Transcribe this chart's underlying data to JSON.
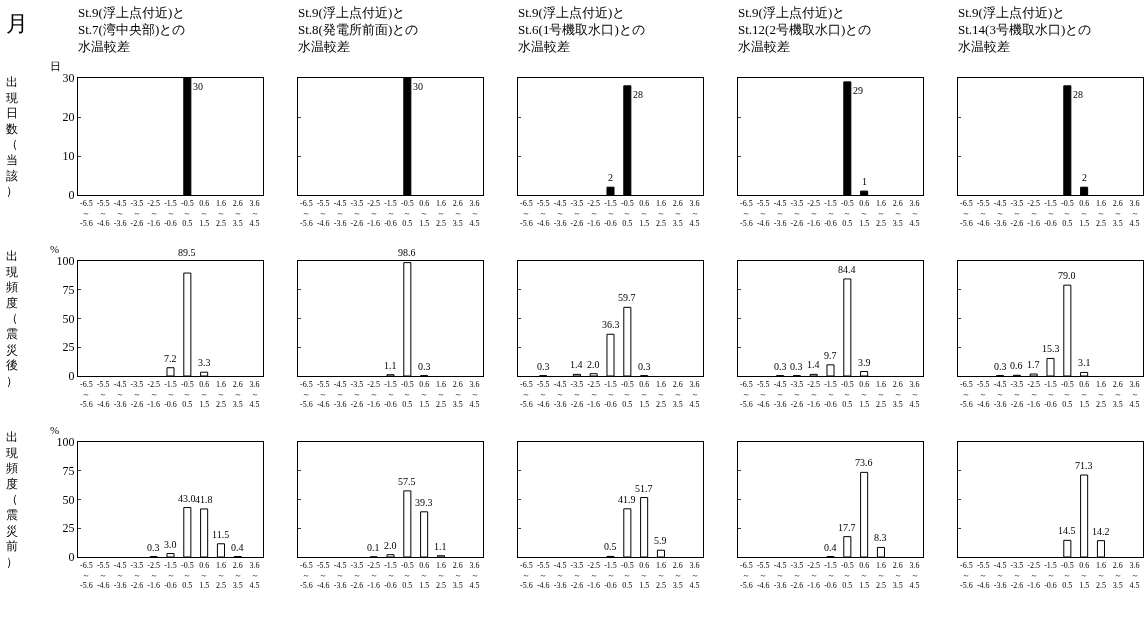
{
  "chart_data": [
    {
      "type": "bar",
      "title": "St.9(浮上点付近)とSt.7(湾中央部)との水温較差",
      "ylabel": "出現日数（当該）",
      "annotations": [
        "月",
        "日"
      ],
      "categories": [
        "-6.5～-5.6",
        "-5.5～-4.6",
        "-4.5～-3.6",
        "-3.5～-2.6",
        "-2.5～-1.6",
        "-1.5～-0.6",
        "-0.5～0.5",
        "0.6～1.5",
        "1.6～2.5",
        "2.6～3.5",
        "3.6～4.5"
      ],
      "values": [
        0,
        0,
        0,
        0,
        0,
        0,
        30,
        0,
        0,
        0,
        0
      ],
      "value_labels": [
        null,
        null,
        null,
        null,
        null,
        null,
        "30",
        null,
        null,
        null,
        null
      ],
      "color": "#000000",
      "ylim": [
        0,
        30
      ],
      "yticks": [
        0,
        10,
        20,
        30
      ]
    },
    {
      "type": "bar",
      "title": "St.9(浮上点付近)とSt.8(発電所前面)との水温較差",
      "categories": [
        "-6.5～-5.6",
        "-5.5～-4.6",
        "-4.5～-3.6",
        "-3.5～-2.6",
        "-2.5～-1.6",
        "-1.5～-0.6",
        "-0.5～0.5",
        "0.6～1.5",
        "1.6～2.5",
        "2.6～3.5",
        "3.6～4.5"
      ],
      "values": [
        0,
        0,
        0,
        0,
        0,
        0,
        30,
        0,
        0,
        0,
        0
      ],
      "value_labels": [
        null,
        null,
        null,
        null,
        null,
        null,
        "30",
        null,
        null,
        null,
        null
      ],
      "color": "#000000",
      "ylim": [
        0,
        30
      ],
      "yticks": [
        0,
        10,
        20,
        30
      ],
      "tick_labels": "x"
    },
    {
      "type": "bar",
      "title": "St.9(浮上点付近)とSt.6(1号機取水口)との水温較差",
      "categories": [
        "-6.5～-5.6",
        "-5.5～-4.6",
        "-4.5～-3.6",
        "-3.5～-2.6",
        "-2.5～-1.6",
        "-1.5～-0.6",
        "-0.5～0.5",
        "0.6～1.5",
        "1.6～2.5",
        "2.6～3.5",
        "3.6～4.5"
      ],
      "values": [
        0,
        0,
        0,
        0,
        0,
        2,
        28,
        0,
        0,
        0,
        0
      ],
      "value_labels": [
        null,
        null,
        null,
        null,
        null,
        "2",
        "28",
        null,
        null,
        null,
        null
      ],
      "color": "#000000",
      "ylim": [
        0,
        30
      ],
      "yticks": [
        0,
        10,
        20,
        30
      ],
      "tick_labels": "x"
    },
    {
      "type": "bar",
      "title": "St.9(浮上点付近)とSt.12(2号機取水口)との水温較差",
      "categories": [
        "-6.5～-5.6",
        "-5.5～-4.6",
        "-4.5～-3.6",
        "-3.5～-2.6",
        "-2.5～-1.6",
        "-1.5～-0.6",
        "-0.5～0.5",
        "0.6～1.5",
        "1.6～2.5",
        "2.6～3.5",
        "3.6～4.5"
      ],
      "values": [
        0,
        0,
        0,
        0,
        0,
        0,
        29,
        1,
        0,
        0,
        0
      ],
      "value_labels": [
        null,
        null,
        null,
        null,
        null,
        null,
        "29",
        "1",
        null,
        null,
        null
      ],
      "color": "#000000",
      "ylim": [
        0,
        30
      ],
      "yticks": [
        0,
        10,
        20,
        30
      ],
      "tick_labels": "x"
    },
    {
      "type": "bar",
      "title": "St.9(浮上点付近)とSt.14(3号機取水口)との水温較差",
      "categories": [
        "-6.5～-5.6",
        "-5.5～-4.6",
        "-4.5～-3.6",
        "-3.5～-2.6",
        "-2.5～-1.6",
        "-1.5～-0.6",
        "-0.5～0.5",
        "0.6～1.5",
        "1.6～2.5",
        "2.6～3.5",
        "3.6～4.5"
      ],
      "values": [
        0,
        0,
        0,
        0,
        0,
        0,
        28,
        2,
        0,
        0,
        0
      ],
      "value_labels": [
        null,
        null,
        null,
        null,
        null,
        null,
        "28",
        "2",
        null,
        null,
        null
      ],
      "color": "#000000",
      "ylim": [
        0,
        30
      ],
      "yticks": [
        0,
        10,
        20,
        30
      ],
      "tick_labels": "x"
    },
    {
      "type": "bar",
      "ylabel": "出現頻度（震災後）",
      "annotations": [
        "%"
      ],
      "categories": [
        "-6.5～-5.6",
        "-5.5～-4.6",
        "-4.5～-3.6",
        "-3.5～-2.6",
        "-2.5～-1.6",
        "-1.5～-0.6",
        "-0.5～0.5",
        "0.6～1.5",
        "1.6～2.5",
        "2.6～3.5",
        "3.6～4.5"
      ],
      "values": [
        0,
        0,
        0,
        0,
        0,
        7.2,
        89.5,
        3.3,
        0,
        0,
        0
      ],
      "value_labels": [
        null,
        null,
        null,
        null,
        null,
        "7.2",
        "89.5",
        "3.3",
        null,
        null,
        null
      ],
      "color": "#ffffff",
      "ylim": [
        0,
        100
      ],
      "yticks": [
        0,
        25,
        50,
        75,
        100
      ]
    },
    {
      "type": "bar",
      "categories": [
        "-6.5～-5.6",
        "-5.5～-4.6",
        "-4.5～-3.6",
        "-3.5～-2.6",
        "-2.5～-1.6",
        "-1.5～-0.6",
        "-0.5～0.5",
        "0.6～1.5",
        "1.6～2.5",
        "2.6～3.5",
        "3.6～4.5"
      ],
      "values": [
        0,
        0,
        0,
        0,
        0,
        1.1,
        98.6,
        0.3,
        0,
        0,
        0
      ],
      "value_labels": [
        null,
        null,
        null,
        null,
        null,
        "1.1",
        "98.6",
        "0.3",
        null,
        null,
        null
      ],
      "color": "#ffffff",
      "ylim": [
        0,
        100
      ],
      "yticks": [
        0,
        25,
        50,
        75,
        100
      ],
      "tick_labels": "x"
    },
    {
      "type": "bar",
      "categories": [
        "-6.5～-5.6",
        "-5.5～-4.6",
        "-4.5～-3.6",
        "-3.5～-2.6",
        "-2.5～-1.6",
        "-1.5～-0.6",
        "-0.5～0.5",
        "0.6～1.5",
        "1.6～2.5",
        "2.6～3.5",
        "3.6～4.5"
      ],
      "values": [
        0,
        0.3,
        0,
        1.4,
        2.0,
        36.3,
        59.7,
        0.3,
        0,
        0,
        0
      ],
      "value_labels": [
        null,
        "0.3",
        null,
        "1.4",
        "2.0",
        "36.3",
        "59.7",
        "0.3",
        null,
        null,
        null
      ],
      "color": "#ffffff",
      "ylim": [
        0,
        100
      ],
      "yticks": [
        0,
        25,
        50,
        75,
        100
      ],
      "tick_labels": "x"
    },
    {
      "type": "bar",
      "categories": [
        "-6.5～-5.6",
        "-5.5～-4.6",
        "-4.5～-3.6",
        "-3.5～-2.6",
        "-2.5～-1.6",
        "-1.5～-0.6",
        "-0.5～0.5",
        "0.6～1.5",
        "1.6～2.5",
        "2.6～3.5",
        "3.6～4.5"
      ],
      "values": [
        0,
        0,
        0.3,
        0.3,
        1.4,
        9.7,
        84.4,
        3.9,
        0,
        0,
        0
      ],
      "value_labels": [
        null,
        null,
        "0.3",
        "0.3",
        "1.4",
        "9.7",
        "84.4",
        "3.9",
        null,
        null,
        null
      ],
      "color": "#ffffff",
      "ylim": [
        0,
        100
      ],
      "yticks": [
        0,
        25,
        50,
        75,
        100
      ],
      "tick_labels": "x"
    },
    {
      "type": "bar",
      "categories": [
        "-6.5～-5.6",
        "-5.5～-4.6",
        "-4.5～-3.6",
        "-3.5～-2.6",
        "-2.5～-1.6",
        "-1.5～-0.6",
        "-0.5～0.5",
        "0.6～1.5",
        "1.6～2.5",
        "2.6～3.5",
        "3.6～4.5"
      ],
      "values": [
        0,
        0,
        0.3,
        0.6,
        1.7,
        15.3,
        79.0,
        3.1,
        0,
        0,
        0
      ],
      "value_labels": [
        null,
        null,
        "0.3",
        "0.6",
        "1.7",
        "15.3",
        "79.0",
        "3.1",
        null,
        null,
        null
      ],
      "color": "#ffffff",
      "ylim": [
        0,
        100
      ],
      "yticks": [
        0,
        25,
        50,
        75,
        100
      ],
      "tick_labels": "x"
    },
    {
      "type": "bar",
      "ylabel": "出現頻度（震災前）",
      "annotations": [
        "%"
      ],
      "categories": [
        "-6.5～-5.6",
        "-5.5～-4.6",
        "-4.5～-3.6",
        "-3.5～-2.6",
        "-2.5～-1.6",
        "-1.5～-0.6",
        "-0.5～0.5",
        "0.6～1.5",
        "1.6～2.5",
        "2.6～3.5",
        "3.6～4.5"
      ],
      "values": [
        0,
        0,
        0,
        0,
        0.3,
        3.0,
        43.0,
        41.8,
        11.5,
        0.4,
        0
      ],
      "value_labels": [
        null,
        null,
        null,
        null,
        "0.3",
        "3.0",
        "43.0",
        "41.8",
        "11.5",
        "0.4",
        null
      ],
      "color": "#ffffff",
      "ylim": [
        0,
        100
      ],
      "yticks": [
        0,
        25,
        50,
        75,
        100
      ]
    },
    {
      "type": "bar",
      "categories": [
        "-6.5～-5.6",
        "-5.5～-4.6",
        "-4.5～-3.6",
        "-3.5～-2.6",
        "-2.5～-1.6",
        "-1.5～-0.6",
        "-0.5～0.5",
        "0.6～1.5",
        "1.6～2.5",
        "2.6～3.5",
        "3.6～4.5"
      ],
      "values": [
        0,
        0,
        0,
        0,
        0.1,
        2.0,
        57.5,
        39.3,
        1.1,
        0,
        0
      ],
      "value_labels": [
        null,
        null,
        null,
        null,
        "0.1",
        "2.0",
        "57.5",
        "39.3",
        "1.1",
        null,
        null
      ],
      "color": "#ffffff",
      "ylim": [
        0,
        100
      ],
      "yticks": [
        0,
        25,
        50,
        75,
        100
      ],
      "tick_labels": "x"
    },
    {
      "type": "bar",
      "categories": [
        "-6.5～-5.6",
        "-5.5～-4.6",
        "-4.5～-3.6",
        "-3.5～-2.6",
        "-2.5～-1.6",
        "-1.5～-0.6",
        "-0.5～0.5",
        "0.6～1.5",
        "1.6～2.5",
        "2.6～3.5",
        "3.6～4.5"
      ],
      "values": [
        0,
        0,
        0,
        0,
        0,
        0.5,
        41.9,
        51.7,
        5.9,
        0,
        0
      ],
      "value_labels": [
        null,
        null,
        null,
        null,
        null,
        "0.5",
        "41.9",
        "51.7",
        "5.9",
        null,
        null
      ],
      "color": "#ffffff",
      "ylim": [
        0,
        100
      ],
      "yticks": [
        0,
        25,
        50,
        75,
        100
      ],
      "tick_labels": "x"
    },
    {
      "type": "bar",
      "categories": [
        "-6.5～-5.6",
        "-5.5～-4.6",
        "-4.5～-3.6",
        "-3.5～-2.6",
        "-2.5～-1.6",
        "-1.5～-0.6",
        "-0.5～0.5",
        "0.6～1.5",
        "1.6～2.5",
        "2.6～3.5",
        "3.6～4.5"
      ],
      "values": [
        0,
        0,
        0,
        0,
        0,
        0.4,
        17.7,
        73.6,
        8.3,
        0,
        0
      ],
      "value_labels": [
        null,
        null,
        null,
        null,
        null,
        "0.4",
        "17.7",
        "73.6",
        "8.3",
        null,
        null
      ],
      "color": "#ffffff",
      "ylim": [
        0,
        100
      ],
      "yticks": [
        0,
        25,
        50,
        75,
        100
      ],
      "tick_labels": "x"
    },
    {
      "type": "bar",
      "categories": [
        "-6.5～-5.6",
        "-5.5～-4.6",
        "-4.5～-3.6",
        "-3.5～-2.6",
        "-2.5～-1.6",
        "-1.5～-0.6",
        "-0.5～0.5",
        "0.6～1.5",
        "1.6～2.5",
        "2.6～3.5",
        "3.6～4.5"
      ],
      "values": [
        0,
        0,
        0,
        0,
        0,
        0,
        14.5,
        71.3,
        14.2,
        0,
        0
      ],
      "value_labels": [
        null,
        null,
        null,
        null,
        null,
        null,
        "14.5",
        "71.3",
        "14.2",
        null,
        null
      ],
      "color": "#ffffff",
      "ylim": [
        0,
        100
      ],
      "yticks": [
        0,
        25,
        50,
        75,
        100
      ],
      "tick_labels": "x"
    }
  ]
}
